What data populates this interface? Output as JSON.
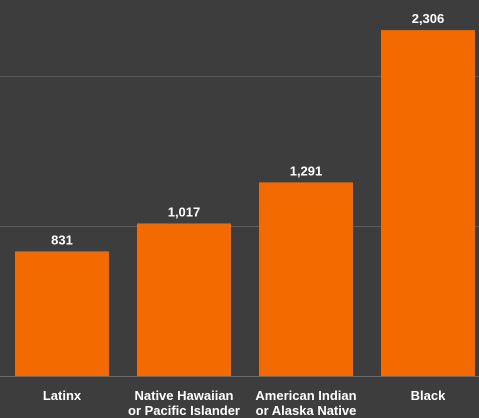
{
  "chart_data": {
    "type": "bar",
    "title": "",
    "xlabel": "",
    "ylabel": "",
    "categories": [
      [
        "Latinx"
      ],
      [
        "Native Hawaiian",
        "or Pacific Islander"
      ],
      [
        "American Indian",
        "or Alaska Native"
      ],
      [
        "Black"
      ]
    ],
    "values": [
      831,
      1017,
      1291,
      2306
    ],
    "value_labels": [
      "831",
      "1,017",
      "1,291",
      "2,306"
    ],
    "ylim": [
      0,
      2500
    ],
    "gridline_values": [
      1000,
      2000
    ],
    "grid": true,
    "legend": "none",
    "colors": {
      "bar": "#f26a00",
      "background": "#3d3d3d",
      "text": "#ffffff",
      "grid": "#5a5a5a"
    }
  }
}
